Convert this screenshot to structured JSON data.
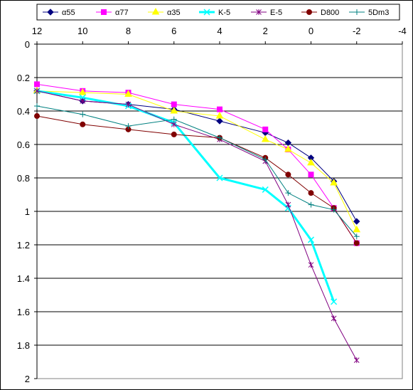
{
  "chart_data": {
    "type": "line",
    "title": "",
    "xlabel": "",
    "ylabel": "",
    "xlim": [
      12,
      -4
    ],
    "ylim": [
      0,
      2
    ],
    "x_reversed": true,
    "y_reversed": true,
    "x_ticks": [
      "12",
      "10",
      "8",
      "6",
      "4",
      "2",
      "0",
      "-2",
      "-4"
    ],
    "y_ticks": [
      "0",
      "0.2",
      "0.4",
      "0.6",
      "0.8",
      "1",
      "1.2",
      "1.4",
      "1.6",
      "1.8",
      "2"
    ],
    "grid": "horizontal",
    "legend_position": "top",
    "series": [
      {
        "name": "α55",
        "color": "#000080",
        "marker": "diamond",
        "x": [
          12,
          10,
          8,
          6,
          4,
          2,
          1,
          0,
          -1,
          -2
        ],
        "y": [
          0.28,
          0.34,
          0.36,
          0.39,
          0.46,
          0.53,
          0.59,
          0.68,
          0.82,
          1.06
        ]
      },
      {
        "name": "α77",
        "color": "#ff00ff",
        "marker": "square",
        "x": [
          12,
          10,
          8,
          6,
          4,
          2,
          1,
          0,
          -1,
          -2
        ],
        "y": [
          0.24,
          0.28,
          0.29,
          0.36,
          0.39,
          0.51,
          0.63,
          0.78,
          0.98,
          1.19
        ]
      },
      {
        "name": "α35",
        "color": "#ffff00",
        "marker": "triangle",
        "x": [
          12,
          10,
          8,
          6,
          4,
          2,
          1,
          0,
          -1,
          -2
        ],
        "y": [
          0.28,
          0.29,
          0.3,
          0.4,
          0.43,
          0.57,
          0.63,
          0.71,
          0.83,
          1.11
        ]
      },
      {
        "name": "K-5",
        "color": "#00ffff",
        "marker": "x",
        "x": [
          12,
          10,
          8,
          6,
          4,
          2,
          1,
          0,
          -1
        ],
        "y": [
          0.28,
          0.32,
          0.37,
          0.47,
          0.8,
          0.87,
          0.98,
          1.17,
          1.54
        ]
      },
      {
        "name": "E-5",
        "color": "#800080",
        "marker": "star",
        "x": [
          12,
          10,
          8,
          6,
          4,
          2,
          1,
          0,
          -1,
          -2
        ],
        "y": [
          0.28,
          0.34,
          0.36,
          0.48,
          0.57,
          0.7,
          0.96,
          1.32,
          1.64,
          1.89
        ]
      },
      {
        "name": "D800",
        "color": "#800000",
        "marker": "circle",
        "x": [
          12,
          10,
          8,
          6,
          4,
          2,
          1,
          0,
          -1,
          -2
        ],
        "y": [
          0.43,
          0.48,
          0.51,
          0.54,
          0.56,
          0.68,
          0.78,
          0.89,
          0.98,
          1.19
        ]
      },
      {
        "name": "5Dm3",
        "color": "#008080",
        "marker": "plus",
        "x": [
          12,
          10,
          8,
          6,
          4,
          2,
          1,
          0,
          -1,
          -2
        ],
        "y": [
          0.37,
          0.42,
          0.49,
          0.45,
          0.56,
          0.69,
          0.89,
          0.96,
          0.99,
          1.15
        ]
      }
    ]
  }
}
